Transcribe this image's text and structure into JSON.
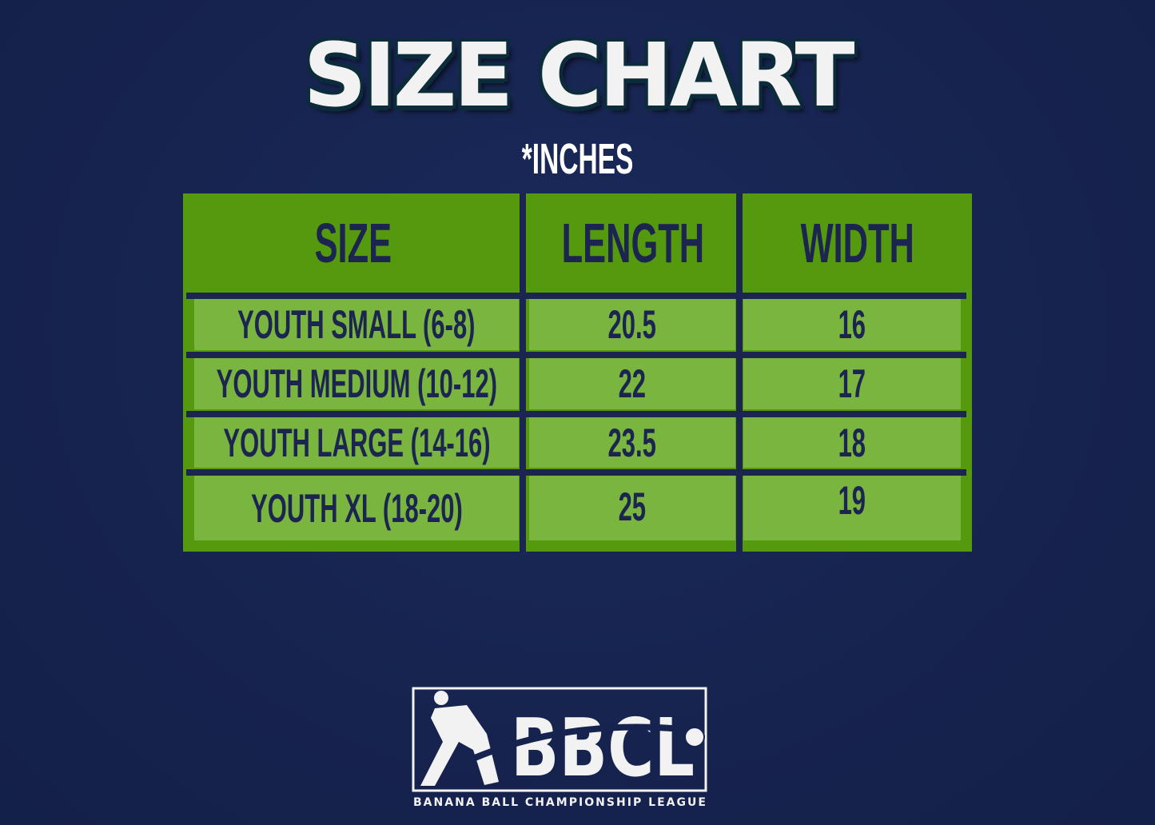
{
  "title": "SIZE CHART",
  "subtitle": "*INCHES",
  "table": {
    "headers": [
      "SIZE",
      "LENGTH",
      "WIDTH"
    ],
    "rows": [
      [
        "YOUTH SMALL (6-8)",
        "20.5",
        "16"
      ],
      [
        "YOUTH MEDIUM (10-12)",
        "22",
        "17"
      ],
      [
        "YOUTH LARGE (14-16)",
        "23.5",
        "18"
      ],
      [
        "YOUTH XL (18-20)",
        "25",
        "19"
      ]
    ]
  },
  "logo": {
    "mark": "BBCL",
    "tagline": "BANANA BALL CHAMPIONSHIP LEAGUE"
  },
  "colors": {
    "background": "#16234e",
    "header_green": "#55990f",
    "row_green": "#7ab53f",
    "text_navy": "#1b2550"
  }
}
